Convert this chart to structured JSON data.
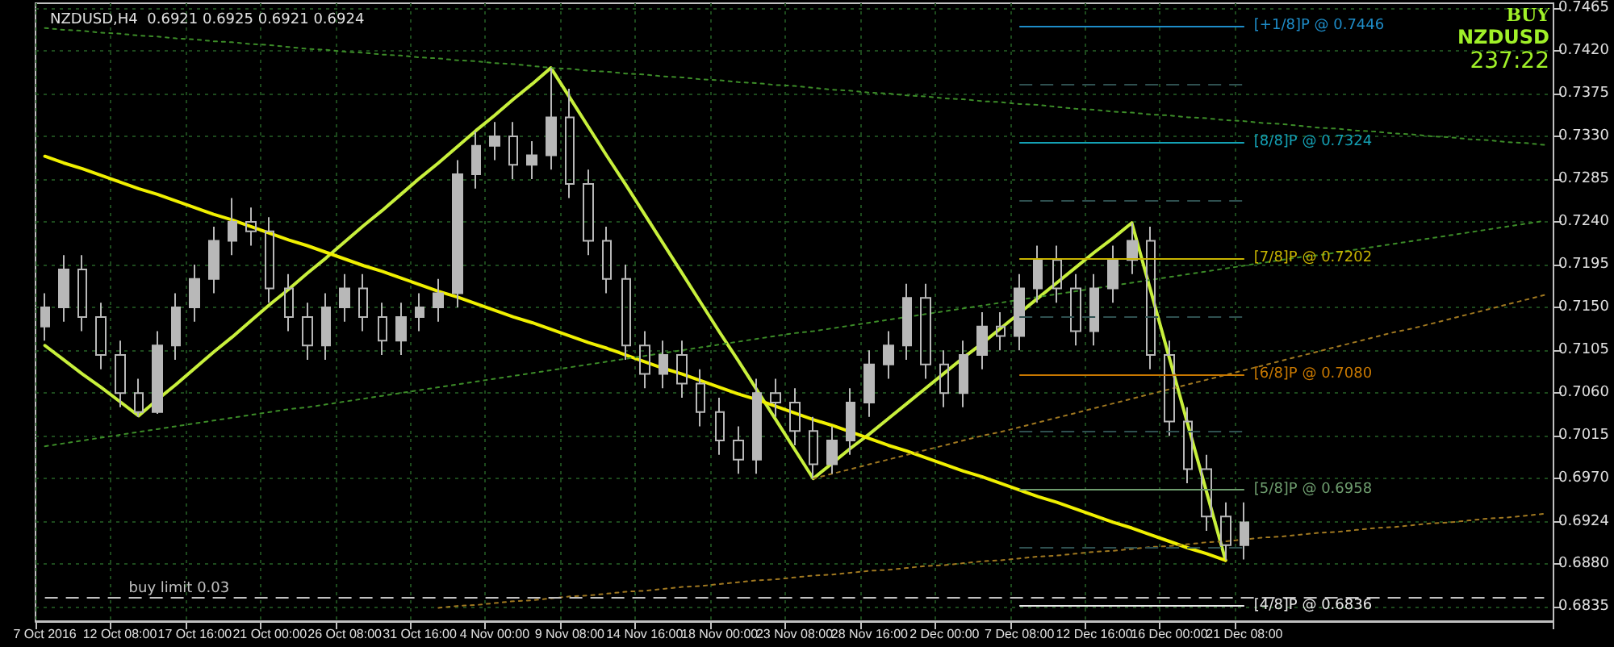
{
  "chart_data": {
    "type": "candlestick",
    "title": "NZDUSD,H4  0.6921 0.6925 0.6921 0.6924",
    "color": "#b8b8b8",
    "categories": [
      "7 Oct 2016",
      null,
      null,
      null,
      "12 Oct 08:00",
      null,
      null,
      null,
      "17 Oct 16:00",
      null,
      null,
      null,
      "21 Oct 00:00",
      null,
      null,
      null,
      "26 Oct 08:00",
      null,
      null,
      null,
      "31 Oct 16:00",
      null,
      null,
      null,
      "4 Nov 00:00",
      null,
      null,
      null,
      "9 Nov 08:00",
      null,
      null,
      null,
      "14 Nov 16:00",
      null,
      null,
      null,
      "18 Nov 00:00",
      null,
      null,
      null,
      "23 Nov 08:00",
      null,
      null,
      null,
      "28 Nov 16:00",
      null,
      null,
      null,
      "2 Dec 00:00",
      null,
      null,
      null,
      "7 Dec 08:00",
      null,
      null,
      null,
      "12 Dec 16:00",
      null,
      null,
      null,
      "16 Dec 00:00",
      null,
      null,
      null,
      "21 Dec 08:00",
      null,
      null,
      null,
      null,
      null,
      null,
      null,
      null,
      null,
      null,
      null,
      null,
      null,
      null,
      null,
      null
    ],
    "ohlc": [
      [
        0.713,
        0.7165,
        0.7115,
        0.715
      ],
      [
        0.715,
        0.7205,
        0.7135,
        0.719
      ],
      [
        0.719,
        0.7205,
        0.7125,
        0.714
      ],
      [
        0.714,
        0.7155,
        0.7085,
        0.71
      ],
      [
        0.71,
        0.7115,
        0.7045,
        0.706
      ],
      [
        0.706,
        0.7075,
        0.7035,
        0.704
      ],
      [
        0.704,
        0.7125,
        0.7038,
        0.711
      ],
      [
        0.711,
        0.7165,
        0.7095,
        0.715
      ],
      [
        0.715,
        0.7195,
        0.7135,
        0.718
      ],
      [
        0.718,
        0.7235,
        0.7165,
        0.722
      ],
      [
        0.722,
        0.7265,
        0.7205,
        0.724
      ],
      [
        0.724,
        0.7255,
        0.7215,
        0.723
      ],
      [
        0.723,
        0.7245,
        0.7155,
        0.717
      ],
      [
        0.717,
        0.7185,
        0.7125,
        0.714
      ],
      [
        0.714,
        0.7155,
        0.7095,
        0.711
      ],
      [
        0.711,
        0.7165,
        0.7095,
        0.715
      ],
      [
        0.715,
        0.7185,
        0.7135,
        0.717
      ],
      [
        0.717,
        0.7185,
        0.7125,
        0.714
      ],
      [
        0.714,
        0.7155,
        0.71,
        0.7115
      ],
      [
        0.7115,
        0.7155,
        0.71,
        0.714
      ],
      [
        0.714,
        0.7165,
        0.7125,
        0.715
      ],
      [
        0.715,
        0.718,
        0.7135,
        0.7165
      ],
      [
        0.7165,
        0.7305,
        0.715,
        0.729
      ],
      [
        0.729,
        0.7335,
        0.7275,
        0.732
      ],
      [
        0.732,
        0.7345,
        0.7305,
        0.733
      ],
      [
        0.733,
        0.7345,
        0.7285,
        0.73
      ],
      [
        0.73,
        0.7325,
        0.7285,
        0.731
      ],
      [
        0.731,
        0.7402,
        0.7295,
        0.735
      ],
      [
        0.735,
        0.738,
        0.7265,
        0.728
      ],
      [
        0.728,
        0.7295,
        0.7205,
        0.722
      ],
      [
        0.722,
        0.7235,
        0.7165,
        0.718
      ],
      [
        0.718,
        0.7195,
        0.7095,
        0.711
      ],
      [
        0.711,
        0.7125,
        0.7065,
        0.708
      ],
      [
        0.708,
        0.7115,
        0.7065,
        0.71
      ],
      [
        0.71,
        0.7115,
        0.7055,
        0.707
      ],
      [
        0.707,
        0.7085,
        0.7025,
        0.704
      ],
      [
        0.704,
        0.7055,
        0.6995,
        0.701
      ],
      [
        0.701,
        0.7025,
        0.6975,
        0.699
      ],
      [
        0.699,
        0.7075,
        0.6975,
        0.706
      ],
      [
        0.706,
        0.7075,
        0.7035,
        0.705
      ],
      [
        0.705,
        0.7065,
        0.7005,
        0.702
      ],
      [
        0.702,
        0.7035,
        0.697,
        0.6985
      ],
      [
        0.6985,
        0.7025,
        0.6975,
        0.701
      ],
      [
        0.701,
        0.7065,
        0.6995,
        0.705
      ],
      [
        0.705,
        0.7105,
        0.7035,
        0.709
      ],
      [
        0.709,
        0.7125,
        0.7075,
        0.711
      ],
      [
        0.711,
        0.7175,
        0.7095,
        0.716
      ],
      [
        0.716,
        0.7175,
        0.7075,
        0.709
      ],
      [
        0.709,
        0.7105,
        0.7045,
        0.706
      ],
      [
        0.706,
        0.7115,
        0.7045,
        0.71
      ],
      [
        0.71,
        0.7145,
        0.7085,
        0.713
      ],
      [
        0.713,
        0.7145,
        0.7105,
        0.712
      ],
      [
        0.712,
        0.7185,
        0.7105,
        0.717
      ],
      [
        0.717,
        0.7215,
        0.7155,
        0.72
      ],
      [
        0.72,
        0.7215,
        0.7155,
        0.717
      ],
      [
        0.717,
        0.7185,
        0.711,
        0.7125
      ],
      [
        0.7125,
        0.7185,
        0.711,
        0.717
      ],
      [
        0.717,
        0.7215,
        0.7155,
        0.72
      ],
      [
        0.72,
        0.7239,
        0.7185,
        0.722
      ],
      [
        0.722,
        0.7235,
        0.7085,
        0.71
      ],
      [
        0.71,
        0.7115,
        0.7015,
        0.703
      ],
      [
        0.703,
        0.7045,
        0.6965,
        0.698
      ],
      [
        0.698,
        0.6995,
        0.6915,
        0.693
      ],
      [
        0.693,
        0.6945,
        0.6884,
        0.69
      ],
      [
        0.69,
        0.6945,
        0.6885,
        0.6924
      ],
      null,
      null,
      null,
      null,
      null,
      null,
      null,
      null,
      null,
      null,
      null,
      null,
      null,
      null,
      null,
      null
    ],
    "series": [
      {
        "type": "line",
        "color": "#c8f03c",
        "line_style": "solid",
        "values": [
          0.711,
          0.7095,
          0.708,
          0.7066,
          0.7051,
          0.7036,
          0.7053,
          0.7069,
          0.7086,
          0.7103,
          0.7119,
          0.7136,
          0.7153,
          0.7169,
          0.7186,
          0.7202,
          0.7219,
          0.7236,
          0.7252,
          0.7269,
          0.7286,
          0.7302,
          0.7319,
          0.7336,
          0.7352,
          0.7369,
          0.7385,
          0.7402,
          0.7371,
          0.734,
          0.7309,
          0.7279,
          0.7248,
          0.7217,
          0.7186,
          0.7155,
          0.7124,
          0.7094,
          0.7063,
          0.7032,
          0.7001,
          0.697,
          0.6986,
          0.7002,
          0.7017,
          0.7033,
          0.7049,
          0.7065,
          0.7081,
          0.7097,
          0.7112,
          0.7128,
          0.7144,
          0.716,
          0.7176,
          0.7192,
          0.7208,
          0.7223,
          0.7239,
          0.7168,
          0.7097,
          0.7026,
          0.6955,
          0.6884,
          null,
          null,
          null,
          null,
          null,
          null,
          null,
          null,
          null,
          null,
          null,
          null,
          null,
          null,
          null,
          null,
          null
        ]
      },
      {
        "type": "line",
        "color": "#f0f000",
        "line_style": "solid",
        "values": [
          0.7309,
          0.7302,
          0.7296,
          0.7289,
          0.7282,
          0.7275,
          0.7269,
          0.7262,
          0.7255,
          0.7248,
          0.7242,
          0.7235,
          0.7228,
          0.7221,
          0.7215,
          0.7208,
          0.7201,
          0.7194,
          0.7188,
          0.7181,
          0.7174,
          0.7167,
          0.7161,
          0.7154,
          0.7147,
          0.714,
          0.7134,
          0.7127,
          0.712,
          0.7113,
          0.7107,
          0.71,
          0.7093,
          0.7086,
          0.708,
          0.7073,
          0.7066,
          0.7059,
          0.7053,
          0.7046,
          0.7039,
          0.7032,
          0.7026,
          0.7019,
          0.7012,
          0.7005,
          0.6999,
          0.6992,
          0.6985,
          0.6978,
          0.6972,
          0.6965,
          0.6958,
          0.6951,
          0.6945,
          0.6938,
          0.6931,
          0.6924,
          0.6918,
          0.6911,
          0.6904,
          0.6897,
          0.6891,
          0.6884,
          null,
          null,
          null,
          null,
          null,
          null,
          null,
          null,
          null,
          null,
          null,
          null,
          null,
          null,
          null,
          null,
          null
        ]
      },
      {
        "type": "line",
        "color": "#3c8c28",
        "line_style": "dotted",
        "values": [
          0.7444,
          0.7442,
          0.7441,
          0.7439,
          0.7438,
          0.7436,
          0.7435,
          0.7433,
          0.7432,
          0.743,
          0.7429,
          0.7427,
          0.7426,
          0.7424,
          0.7422,
          0.7421,
          0.7419,
          0.7418,
          0.7416,
          0.7415,
          0.7413,
          0.7412,
          0.741,
          0.7409,
          0.7407,
          0.7406,
          0.7404,
          0.7402,
          0.7401,
          0.7399,
          0.7398,
          0.7396,
          0.7395,
          0.7393,
          0.7392,
          0.739,
          0.7389,
          0.7387,
          0.7386,
          0.7384,
          0.7383,
          0.7381,
          0.7379,
          0.7378,
          0.7376,
          0.7375,
          0.7373,
          0.7372,
          0.737,
          0.7369,
          0.7367,
          0.7366,
          0.7364,
          0.7363,
          0.7361,
          0.7359,
          0.7358,
          0.7356,
          0.7355,
          0.7353,
          0.7352,
          0.735,
          0.7349,
          0.7347,
          0.7346,
          0.7344,
          0.7343,
          0.7341,
          0.7339,
          0.7338,
          0.7336,
          0.7335,
          0.7333,
          0.7332,
          0.733,
          0.7329,
          0.7327,
          0.7326,
          0.7324,
          0.7323,
          0.7321
        ]
      },
      {
        "type": "line",
        "color": "#3c8c28",
        "line_style": "dotted",
        "values": [
          0.7004,
          0.7007,
          0.701,
          0.7013,
          0.7016,
          0.7019,
          0.7022,
          0.7025,
          0.7028,
          0.7031,
          0.7034,
          0.7037,
          0.704,
          0.7043,
          0.7045,
          0.7048,
          0.7051,
          0.7054,
          0.7057,
          0.706,
          0.7063,
          0.7066,
          0.7069,
          0.7072,
          0.7075,
          0.7078,
          0.7081,
          0.7084,
          0.7087,
          0.709,
          0.7093,
          0.7096,
          0.7099,
          0.7102,
          0.7105,
          0.7108,
          0.7111,
          0.7114,
          0.7117,
          0.712,
          0.7123,
          0.7125,
          0.7128,
          0.7131,
          0.7134,
          0.7137,
          0.714,
          0.7143,
          0.7146,
          0.7149,
          0.7152,
          0.7155,
          0.7158,
          0.7161,
          0.7164,
          0.7167,
          0.717,
          0.7173,
          0.7176,
          0.7179,
          0.7182,
          0.7185,
          0.7188,
          0.7191,
          0.7194,
          0.7197,
          0.72,
          0.7203,
          0.7205,
          0.7208,
          0.7211,
          0.7214,
          0.7217,
          0.722,
          0.7223,
          0.7226,
          0.7229,
          0.7232,
          0.7235,
          0.7238,
          0.7241
        ]
      },
      {
        "type": "line",
        "color": "#a07820",
        "line_style": "dotted",
        "values": [
          null,
          null,
          null,
          null,
          null,
          null,
          null,
          null,
          null,
          null,
          null,
          null,
          null,
          null,
          null,
          null,
          null,
          null,
          null,
          null,
          null,
          null,
          null,
          null,
          null,
          null,
          null,
          null,
          null,
          null,
          null,
          null,
          null,
          null,
          null,
          null,
          null,
          null,
          null,
          null,
          null,
          0.697,
          0.6975,
          0.698,
          0.6985,
          0.699,
          0.6995,
          0.7,
          0.7005,
          0.701,
          0.7015,
          0.7019,
          0.7024,
          0.7029,
          0.7034,
          0.7039,
          0.7044,
          0.7049,
          0.7054,
          0.7059,
          0.7064,
          0.7069,
          0.7074,
          0.7079,
          0.7084,
          0.7089,
          0.7094,
          0.7099,
          0.7104,
          0.7109,
          0.7114,
          0.7119,
          0.7124,
          0.7128,
          0.7133,
          0.7138,
          0.7143,
          0.7148,
          0.7153,
          0.7158,
          0.7163
        ]
      },
      {
        "type": "line",
        "color": "#a07820",
        "line_style": "dotted",
        "values": [
          null,
          null,
          null,
          null,
          null,
          null,
          null,
          null,
          null,
          null,
          null,
          null,
          null,
          null,
          null,
          null,
          null,
          null,
          null,
          null,
          null,
          0.6834,
          0.6836,
          0.6837,
          0.6839,
          0.6841,
          0.6842,
          0.6844,
          0.6846,
          0.6847,
          0.6849,
          0.6851,
          0.6852,
          0.6854,
          0.6856,
          0.6857,
          0.6859,
          0.6861,
          0.6863,
          0.6864,
          0.6866,
          0.6868,
          0.6869,
          0.6871,
          0.6873,
          0.6874,
          0.6876,
          0.6878,
          0.6879,
          0.6881,
          0.6883,
          0.6884,
          0.6886,
          0.6888,
          0.6889,
          0.6891,
          0.6893,
          0.6894,
          0.6896,
          0.6898,
          0.6899,
          0.6901,
          0.6903,
          0.6904,
          0.6906,
          0.6908,
          0.6909,
          0.6911,
          0.6913,
          0.6914,
          0.6916,
          0.6918,
          0.6919,
          0.6921,
          0.6923,
          0.6924,
          0.6926,
          0.6928,
          0.6929,
          0.6931,
          0.6933
        ]
      }
    ],
    "ylim": [
      0.682,
      0.747
    ],
    "yticks": [
      0.6835,
      {
        "value": 0.688,
        "label": "0.6880"
      },
      0.6924,
      {
        "value": 0.697,
        "label": "0.6970"
      },
      0.7015,
      {
        "value": 0.706,
        "label": "0.7060"
      },
      0.7105,
      {
        "value": 0.715,
        "label": "0.7150"
      },
      0.7195,
      {
        "value": 0.724,
        "label": "0.7240"
      },
      0.7285,
      {
        "value": 0.733,
        "label": "0.7330"
      },
      0.7375,
      {
        "value": 0.742,
        "label": "0.7420"
      },
      0.7465
    ],
    "grid": true,
    "ref_lines": [
      {
        "axis": "y",
        "value": 0.7446,
        "label": "[+1/8]P @ 0.7446",
        "color": "#1e8cc8",
        "line_style": "solid"
      },
      {
        "axis": "y",
        "value": 0.7385,
        "label": null,
        "color": "#2f5050",
        "line_style": "dashed"
      },
      {
        "axis": "y",
        "value": 0.7324,
        "label": "[8/8]P @ 0.7324",
        "color": "#14a0b4",
        "line_style": "solid"
      },
      {
        "axis": "y",
        "value": 0.7263,
        "label": null,
        "color": "#2f5050",
        "line_style": "dashed"
      },
      {
        "axis": "y",
        "value": 0.7202,
        "label": "[7/8]P @ 0.7202",
        "color": "#c8b400",
        "line_style": "solid"
      },
      {
        "axis": "y",
        "value": 0.7141,
        "label": null,
        "color": "#2f5050",
        "line_style": "dashed"
      },
      {
        "axis": "y",
        "value": 0.708,
        "label": "[6/8]P @ 0.7080",
        "color": "#c87800",
        "line_style": "solid"
      },
      {
        "axis": "y",
        "value": 0.7019,
        "label": null,
        "color": "#2f5050",
        "line_style": "dashed"
      },
      {
        "axis": "y",
        "value": 0.6958,
        "label": "[5/8]P @ 0.6958",
        "color": "#6e9c6e",
        "line_style": "solid"
      },
      {
        "axis": "y",
        "value": 0.6897,
        "label": null,
        "color": "#2f5050",
        "line_style": "dashed"
      },
      {
        "axis": "y",
        "value": 0.6836,
        "label": "[4/8]P @ 0.6836",
        "color": "#e8e8e8",
        "line_style": "solid"
      },
      {
        "axis": "y",
        "value": 0.6845,
        "label": "buy limit 0.03",
        "color": "#c0c0c0",
        "line_style": "dashed"
      }
    ],
    "annotations": [
      "BUY",
      "NZDUSD",
      "237:22"
    ]
  }
}
